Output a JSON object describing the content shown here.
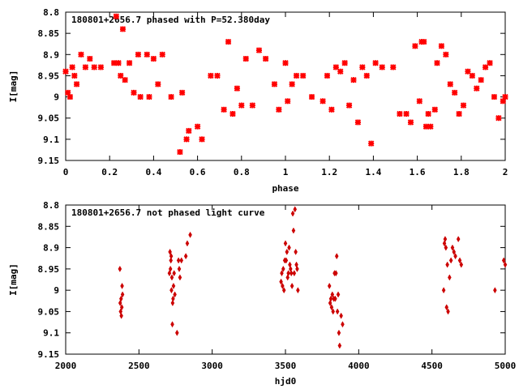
{
  "chart_data": [
    {
      "type": "scatter",
      "title": "180801+2656.7 phased with P=52.380day",
      "xlabel": "phase",
      "ylabel": "I[mag]",
      "xlim": [
        0,
        2
      ],
      "ylim": [
        9.15,
        8.8
      ],
      "y_inverted": true,
      "xticks": [
        "0",
        "0.2",
        "0.4",
        "0.6",
        "0.8",
        "1",
        "1.2",
        "1.4",
        "1.6",
        "1.8",
        "2"
      ],
      "xtick_values": [
        0,
        0.2,
        0.4,
        0.6,
        0.8,
        1,
        1.2,
        1.4,
        1.6,
        1.8,
        2
      ],
      "yticks": [
        "8.8",
        "8.85",
        "8.9",
        "8.95",
        "9",
        "9.05",
        "9.1",
        "9.15"
      ],
      "ytick_values": [
        8.8,
        8.85,
        8.9,
        8.95,
        9.0,
        9.05,
        9.1,
        9.15
      ],
      "marker": "plus-cross",
      "color": "#ff0000",
      "x": [
        0.0,
        0.01,
        0.02,
        0.03,
        0.04,
        0.05,
        0.07,
        0.09,
        0.11,
        0.13,
        0.16,
        0.22,
        0.23,
        0.24,
        0.25,
        0.26,
        0.27,
        0.29,
        0.31,
        0.33,
        0.34,
        0.37,
        0.38,
        0.4,
        0.42,
        0.44,
        0.48,
        0.52,
        0.53,
        0.55,
        0.56,
        0.6,
        0.62,
        0.66,
        0.69,
        0.72,
        0.74,
        0.76,
        0.78,
        0.8,
        0.82,
        0.85,
        0.88,
        0.91,
        0.95,
        0.97,
        1.0,
        1.01,
        1.03,
        1.05,
        1.08,
        1.12,
        1.17,
        1.19,
        1.21,
        1.23,
        1.25,
        1.27,
        1.29,
        1.31,
        1.33,
        1.35,
        1.37,
        1.39,
        1.41,
        1.44,
        1.49,
        1.52,
        1.55,
        1.57,
        1.59,
        1.61,
        1.62,
        1.63,
        1.64,
        1.65,
        1.66,
        1.68,
        1.69,
        1.71,
        1.73,
        1.75,
        1.77,
        1.79,
        1.81,
        1.83,
        1.85,
        1.87,
        1.89,
        1.91,
        1.93,
        1.95,
        1.97,
        1.99,
        2.0
      ],
      "y": [
        8.94,
        8.99,
        9.0,
        8.93,
        8.95,
        8.97,
        8.9,
        8.93,
        8.91,
        8.93,
        8.93,
        8.92,
        8.81,
        8.92,
        8.95,
        8.84,
        8.96,
        8.92,
        8.99,
        8.9,
        9.0,
        8.9,
        9.0,
        8.91,
        8.97,
        8.9,
        9.0,
        9.13,
        8.99,
        9.1,
        9.08,
        9.07,
        9.1,
        8.95,
        8.95,
        9.03,
        8.87,
        9.04,
        8.98,
        9.02,
        8.91,
        9.02,
        8.89,
        8.91,
        8.97,
        9.03,
        8.92,
        9.01,
        8.97,
        8.95,
        8.95,
        9.0,
        9.01,
        8.95,
        9.03,
        8.93,
        8.94,
        8.92,
        9.02,
        8.96,
        9.06,
        8.93,
        8.95,
        9.11,
        8.92,
        8.93,
        8.93,
        9.04,
        9.04,
        9.06,
        8.88,
        9.01,
        8.87,
        8.87,
        9.07,
        9.04,
        9.07,
        9.03,
        8.92,
        8.88,
        8.9,
        8.97,
        8.99,
        9.04,
        9.02,
        8.94,
        8.95,
        8.98,
        8.96,
        8.93,
        8.92,
        9.0,
        9.05,
        9.01,
        9.0
      ],
      "annotations": [],
      "grid": false,
      "legend": "none"
    },
    {
      "type": "scatter",
      "title": "180801+2656.7 not phased light curve",
      "xlabel": "hjd0",
      "ylabel": "I[mag]",
      "xlim": [
        2000,
        5000
      ],
      "ylim": [
        9.15,
        8.8
      ],
      "y_inverted": true,
      "xticks": [
        "2000",
        "2500",
        "3000",
        "3500",
        "4000",
        "4500",
        "5000"
      ],
      "xtick_values": [
        2000,
        2500,
        3000,
        3500,
        4000,
        4500,
        5000
      ],
      "yticks": [
        "8.8",
        "8.85",
        "8.9",
        "8.95",
        "9",
        "9.05",
        "9.1",
        "9.15"
      ],
      "ytick_values": [
        8.8,
        8.85,
        8.9,
        8.95,
        9.0,
        9.05,
        9.1,
        9.15
      ],
      "marker": "diamond",
      "color": "#cc0000",
      "x": [
        2370,
        2372,
        2375,
        2378,
        2380,
        2383,
        2385,
        2388,
        2708,
        2712,
        2715,
        2718,
        2720,
        2722,
        2725,
        2728,
        2730,
        2733,
        2736,
        2740,
        2745,
        2760,
        2770,
        2775,
        2780,
        2790,
        2820,
        2830,
        2850,
        3470,
        3475,
        3480,
        3485,
        3490,
        3495,
        3500,
        3505,
        3510,
        3515,
        3520,
        3525,
        3530,
        3535,
        3540,
        3545,
        3550,
        3555,
        3560,
        3565,
        3570,
        3575,
        3580,
        3585,
        3800,
        3805,
        3810,
        3815,
        3820,
        3825,
        3830,
        3835,
        3840,
        3845,
        3850,
        3855,
        3860,
        3865,
        3870,
        3880,
        3890,
        4580,
        4585,
        4590,
        4595,
        4600,
        4605,
        4610,
        4620,
        4630,
        4640,
        4650,
        4660,
        4680,
        4690,
        4700,
        4930,
        4990,
        5000
      ],
      "y": [
        8.95,
        9.03,
        9.05,
        9.02,
        9.06,
        9.04,
        8.99,
        9.01,
        8.96,
        8.91,
        8.95,
        8.93,
        8.92,
        9.0,
        8.97,
        9.08,
        9.03,
        9.02,
        8.99,
        8.96,
        9.01,
        9.1,
        8.93,
        8.95,
        8.97,
        8.93,
        8.92,
        8.89,
        8.87,
        8.98,
        8.96,
        8.99,
        8.95,
        9.0,
        8.93,
        8.89,
        8.93,
        8.91,
        8.97,
        8.96,
        8.9,
        8.94,
        8.95,
        8.96,
        8.99,
        8.82,
        8.86,
        8.96,
        8.81,
        8.91,
        8.94,
        8.95,
        9.0,
        8.99,
        9.03,
        9.02,
        9.04,
        9.01,
        9.05,
        9.02,
        8.96,
        9.02,
        8.96,
        8.92,
        9.05,
        9.01,
        9.1,
        9.13,
        9.06,
        9.08,
        9.0,
        8.89,
        8.88,
        8.9,
        9.04,
        8.94,
        9.05,
        8.97,
        8.93,
        8.9,
        8.91,
        8.92,
        8.88,
        8.93,
        8.94,
        9.0,
        8.93,
        8.94
      ],
      "annotations": [],
      "grid": false,
      "legend": "none"
    }
  ]
}
